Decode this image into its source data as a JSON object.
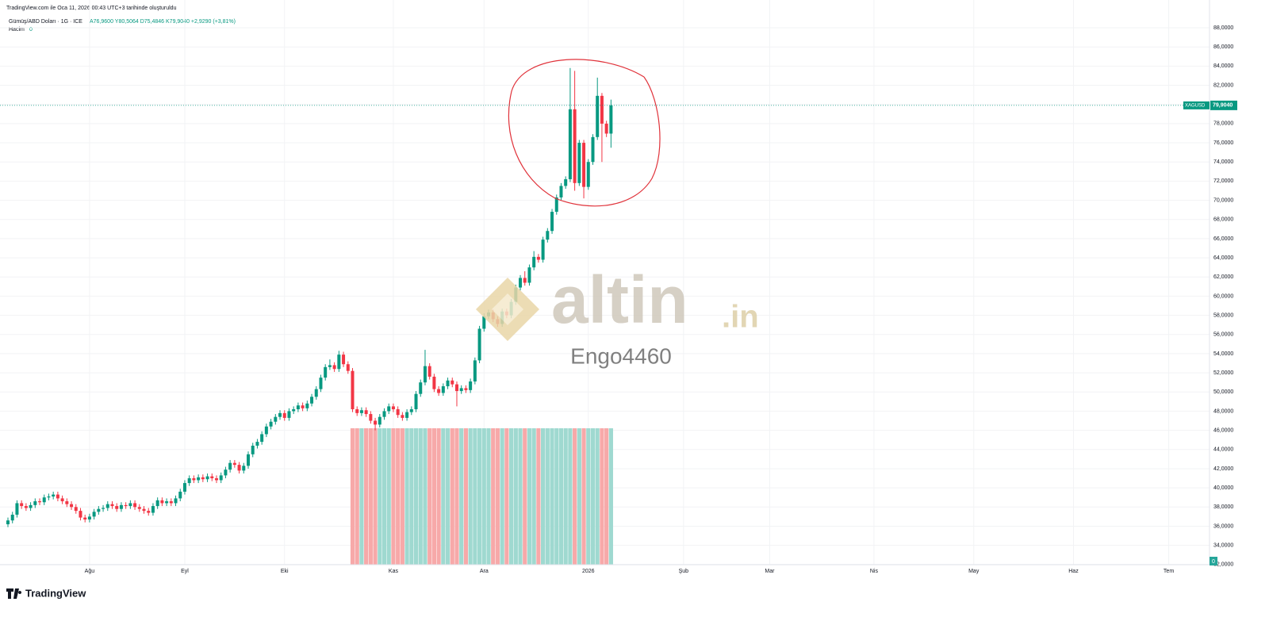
{
  "header": {
    "created": "TradingView.com ile Oca 11, 2026 00:43 UTC+3 tarihinde oluşturuldu",
    "symbol": "Gümüş/ABD Doları · 1G · ICE",
    "ohlc_text": "A76,9600 Y80,5064 D75,4846 K79,9040 +2,9290 (+3,81%)",
    "volume_label": "Hacim",
    "volume_value": "0"
  },
  "watermark": {
    "brand": "altin",
    "brand_suffix": ".in",
    "user": "Engo4460"
  },
  "footer": {
    "logo": "TradingView"
  },
  "chart_data": {
    "type": "candlestick",
    "ticker": "XAGUSD",
    "last_price": {
      "value": 79.904,
      "label": "79,9040"
    },
    "volume_badge": "0",
    "grid": true,
    "up_color": "#089981",
    "down_color": "#f23645",
    "ylim": [
      31.9,
      88.5
    ],
    "yticks": [
      {
        "value": 32,
        "label": "32,0000"
      },
      {
        "value": 34,
        "label": "34,0000"
      },
      {
        "value": 36,
        "label": "36,0000"
      },
      {
        "value": 38,
        "label": "38,0000"
      },
      {
        "value": 40,
        "label": "40,0000"
      },
      {
        "value": 42,
        "label": "42,0000"
      },
      {
        "value": 44,
        "label": "44,0000"
      },
      {
        "value": 46,
        "label": "46,0000"
      },
      {
        "value": 48,
        "label": "48,0000"
      },
      {
        "value": 50,
        "label": "50,0000"
      },
      {
        "value": 52,
        "label": "52,0000"
      },
      {
        "value": 54,
        "label": "54,0000"
      },
      {
        "value": 56,
        "label": "56,0000"
      },
      {
        "value": 58,
        "label": "58,0000"
      },
      {
        "value": 60,
        "label": "60,0000"
      },
      {
        "value": 62,
        "label": "62,0000"
      },
      {
        "value": 64,
        "label": "64,0000"
      },
      {
        "value": 66,
        "label": "66,0000"
      },
      {
        "value": 68,
        "label": "68,0000"
      },
      {
        "value": 70,
        "label": "70,0000"
      },
      {
        "value": 72,
        "label": "72,0000"
      },
      {
        "value": 74,
        "label": "74,0000"
      },
      {
        "value": 76,
        "label": "76,0000"
      },
      {
        "value": 78,
        "label": "78,0000"
      },
      {
        "value": 80,
        "label": "80,0000"
      },
      {
        "value": 82,
        "label": "82,0000"
      },
      {
        "value": 84,
        "label": "84,0000"
      },
      {
        "value": 86,
        "label": "86,0000"
      },
      {
        "value": 88,
        "label": "88,0000"
      }
    ],
    "xlim": [
      -1.75,
      265
    ],
    "xticks": [
      {
        "value": 18,
        "label": "Ağu"
      },
      {
        "value": 39,
        "label": "Eyl"
      },
      {
        "value": 61,
        "label": "Eki"
      },
      {
        "value": 85,
        "label": "Kas"
      },
      {
        "value": 105,
        "label": "Ara"
      },
      {
        "value": 128,
        "label": "2026"
      },
      {
        "value": 149,
        "label": "Şub"
      },
      {
        "value": 168,
        "label": "Mar"
      },
      {
        "value": 191,
        "label": "Nis"
      },
      {
        "value": 213,
        "label": "May"
      },
      {
        "value": 235,
        "label": "Haz"
      },
      {
        "value": 256,
        "label": "Tem"
      }
    ],
    "ohlc": [
      [
        36.2,
        36.9,
        35.9,
        36.6
      ],
      [
        36.6,
        37.5,
        36.3,
        37.2
      ],
      [
        37.2,
        38.7,
        36.9,
        38.4
      ],
      [
        38.4,
        38.7,
        37.8,
        38.1
      ],
      [
        38.1,
        38.4,
        37.6,
        37.9
      ],
      [
        37.9,
        38.5,
        37.6,
        38.2
      ],
      [
        38.2,
        38.9,
        37.9,
        38.6
      ],
      [
        38.6,
        38.9,
        38.2,
        38.5
      ],
      [
        38.5,
        39.3,
        38.2,
        39.0
      ],
      [
        39.0,
        39.4,
        38.7,
        39.1
      ],
      [
        39.1,
        39.6,
        38.8,
        39.3
      ],
      [
        39.3,
        39.6,
        38.6,
        38.9
      ],
      [
        38.9,
        39.2,
        38.3,
        38.6
      ],
      [
        38.6,
        38.9,
        38.0,
        38.3
      ],
      [
        38.3,
        38.6,
        37.7,
        38.0
      ],
      [
        38.0,
        38.3,
        37.3,
        37.6
      ],
      [
        37.6,
        37.9,
        36.6,
        36.9
      ],
      [
        36.9,
        37.2,
        36.4,
        36.7
      ],
      [
        36.7,
        37.3,
        36.4,
        37.0
      ],
      [
        37.0,
        37.8,
        36.7,
        37.5
      ],
      [
        37.5,
        38.1,
        37.2,
        37.8
      ],
      [
        37.8,
        38.2,
        37.5,
        37.9
      ],
      [
        37.9,
        38.6,
        37.6,
        38.3
      ],
      [
        38.3,
        38.6,
        37.8,
        38.1
      ],
      [
        38.1,
        38.4,
        37.5,
        37.8
      ],
      [
        37.8,
        38.5,
        37.5,
        38.2
      ],
      [
        38.2,
        38.5,
        37.8,
        38.1
      ],
      [
        38.1,
        38.7,
        37.8,
        38.4
      ],
      [
        38.4,
        38.7,
        37.7,
        38.0
      ],
      [
        38.0,
        38.3,
        37.5,
        37.8
      ],
      [
        37.8,
        38.1,
        37.3,
        37.6
      ],
      [
        37.6,
        37.9,
        37.1,
        37.4
      ],
      [
        37.4,
        38.4,
        37.1,
        38.1
      ],
      [
        38.1,
        39.0,
        37.8,
        38.7
      ],
      [
        38.7,
        39.0,
        38.1,
        38.4
      ],
      [
        38.4,
        38.9,
        38.1,
        38.6
      ],
      [
        38.6,
        38.9,
        38.1,
        38.4
      ],
      [
        38.4,
        39.2,
        38.1,
        38.9
      ],
      [
        38.9,
        39.9,
        38.6,
        39.6
      ],
      [
        39.6,
        40.8,
        39.3,
        40.5
      ],
      [
        40.5,
        41.3,
        40.2,
        41.0
      ],
      [
        41.0,
        41.3,
        40.5,
        40.8
      ],
      [
        40.8,
        41.4,
        40.5,
        41.1
      ],
      [
        41.1,
        41.4,
        40.6,
        40.9
      ],
      [
        40.9,
        41.5,
        40.6,
        41.2
      ],
      [
        41.2,
        41.5,
        40.7,
        41.0
      ],
      [
        41.0,
        41.3,
        40.5,
        40.8
      ],
      [
        40.8,
        41.6,
        40.5,
        41.3
      ],
      [
        41.3,
        42.2,
        41.0,
        41.9
      ],
      [
        41.9,
        42.9,
        41.6,
        42.6
      ],
      [
        42.6,
        42.9,
        42.1,
        42.4
      ],
      [
        42.4,
        42.7,
        41.5,
        41.8
      ],
      [
        41.8,
        42.6,
        41.5,
        42.3
      ],
      [
        42.3,
        43.8,
        42.0,
        43.5
      ],
      [
        43.5,
        44.7,
        43.2,
        44.4
      ],
      [
        44.4,
        45.1,
        44.1,
        44.8
      ],
      [
        44.8,
        45.9,
        44.5,
        45.6
      ],
      [
        45.6,
        46.7,
        45.3,
        46.4
      ],
      [
        46.4,
        47.2,
        46.1,
        46.9
      ],
      [
        46.9,
        47.7,
        46.6,
        47.4
      ],
      [
        47.4,
        48.1,
        47.1,
        47.8
      ],
      [
        47.8,
        48.1,
        47.0,
        47.3
      ],
      [
        47.3,
        48.3,
        47.0,
        48.0
      ],
      [
        48.0,
        48.5,
        47.7,
        48.2
      ],
      [
        48.2,
        48.9,
        47.9,
        48.6
      ],
      [
        48.6,
        48.9,
        48.0,
        48.3
      ],
      [
        48.3,
        49.1,
        48.0,
        48.8
      ],
      [
        48.8,
        49.8,
        48.5,
        49.5
      ],
      [
        49.5,
        50.6,
        49.2,
        50.3
      ],
      [
        50.3,
        51.8,
        50.0,
        51.5
      ],
      [
        51.5,
        52.9,
        51.2,
        52.6
      ],
      [
        52.6,
        53.4,
        52.3,
        52.8
      ],
      [
        52.8,
        53.1,
        52.1,
        52.4
      ],
      [
        52.4,
        54.3,
        52.1,
        53.9
      ],
      [
        53.9,
        54.2,
        52.6,
        52.9
      ],
      [
        52.9,
        53.2,
        51.9,
        52.2
      ],
      [
        52.2,
        52.5,
        47.9,
        48.2
      ],
      [
        48.2,
        48.5,
        47.5,
        47.8
      ],
      [
        47.8,
        48.4,
        47.5,
        48.1
      ],
      [
        48.1,
        48.4,
        47.4,
        47.7
      ],
      [
        47.7,
        48.0,
        46.7,
        47.0
      ],
      [
        47.0,
        47.3,
        46.0,
        46.6
      ],
      [
        46.6,
        47.7,
        46.3,
        47.4
      ],
      [
        47.4,
        48.3,
        47.1,
        48.0
      ],
      [
        48.0,
        48.8,
        47.7,
        48.5
      ],
      [
        48.5,
        48.8,
        47.9,
        48.2
      ],
      [
        48.2,
        48.5,
        47.3,
        47.6
      ],
      [
        47.6,
        47.9,
        47.0,
        47.3
      ],
      [
        47.3,
        48.2,
        47.0,
        47.9
      ],
      [
        47.9,
        48.5,
        47.6,
        48.2
      ],
      [
        48.2,
        50.1,
        47.9,
        49.8
      ],
      [
        49.8,
        51.3,
        49.5,
        51.0
      ],
      [
        51.0,
        54.4,
        50.7,
        52.7
      ],
      [
        52.7,
        53.0,
        51.3,
        51.6
      ],
      [
        51.6,
        51.9,
        50.0,
        50.3
      ],
      [
        50.3,
        50.6,
        49.6,
        49.9
      ],
      [
        49.9,
        50.9,
        49.6,
        50.6
      ],
      [
        50.6,
        51.5,
        50.3,
        51.2
      ],
      [
        51.2,
        51.5,
        50.5,
        50.8
      ],
      [
        50.8,
        51.1,
        48.5,
        50.1
      ],
      [
        50.1,
        50.7,
        49.8,
        50.4
      ],
      [
        50.4,
        50.7,
        49.9,
        50.2
      ],
      [
        50.2,
        51.4,
        49.9,
        51.1
      ],
      [
        51.1,
        53.6,
        50.8,
        53.3
      ],
      [
        53.3,
        56.9,
        53.0,
        56.6
      ],
      [
        56.6,
        58.2,
        56.3,
        57.9
      ],
      [
        57.9,
        58.6,
        57.6,
        58.3
      ],
      [
        58.3,
        58.6,
        57.3,
        57.6
      ],
      [
        57.6,
        57.9,
        56.8,
        57.1
      ],
      [
        57.1,
        58.7,
        56.8,
        58.4
      ],
      [
        58.4,
        58.7,
        57.7,
        58.0
      ],
      [
        58.0,
        59.7,
        57.7,
        59.4
      ],
      [
        59.4,
        61.2,
        59.1,
        60.9
      ],
      [
        60.9,
        62.2,
        60.6,
        61.9
      ],
      [
        61.9,
        62.6,
        61.1,
        61.4
      ],
      [
        61.4,
        63.3,
        61.1,
        63.0
      ],
      [
        63.0,
        64.7,
        62.7,
        64.1
      ],
      [
        64.1,
        64.4,
        63.5,
        63.8
      ],
      [
        63.8,
        66.2,
        63.5,
        65.9
      ],
      [
        65.9,
        67.1,
        65.6,
        66.8
      ],
      [
        66.8,
        69.1,
        66.5,
        68.8
      ],
      [
        68.8,
        70.6,
        68.5,
        70.3
      ],
      [
        70.3,
        71.8,
        70.0,
        71.5
      ],
      [
        71.5,
        72.5,
        71.2,
        72.2
      ],
      [
        72.2,
        83.8,
        71.9,
        79.5
      ],
      [
        79.5,
        83.5,
        71.0,
        71.8
      ],
      [
        71.8,
        76.3,
        71.5,
        76.0
      ],
      [
        76.0,
        76.3,
        70.2,
        71.4
      ],
      [
        71.4,
        74.3,
        71.1,
        74.0
      ],
      [
        74.0,
        76.9,
        73.7,
        76.6
      ],
      [
        76.6,
        82.8,
        76.3,
        80.9
      ],
      [
        80.9,
        81.2,
        74.0,
        78.0
      ],
      [
        78.0,
        78.3,
        76.6,
        76.96
      ],
      [
        76.96,
        80.5064,
        75.4846,
        79.904
      ]
    ]
  }
}
